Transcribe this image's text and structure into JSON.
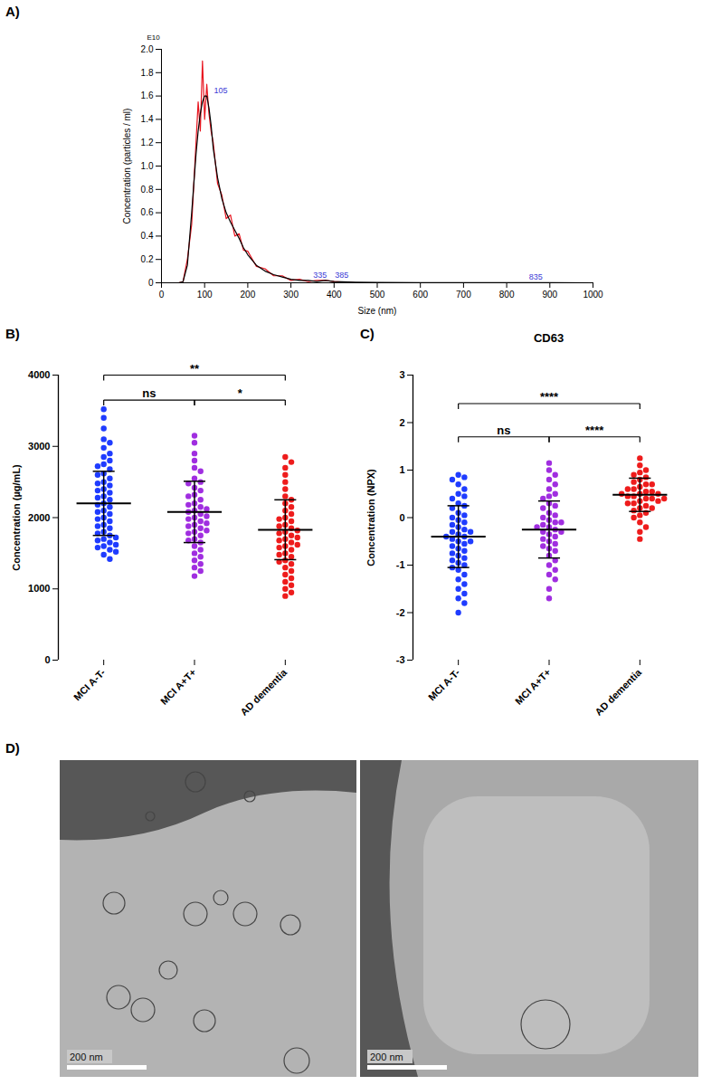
{
  "chart_data": [
    {
      "type": "line",
      "panel_label": "A)",
      "x_label": "Size (nm)",
      "y_label": "Concentration (particles / ml)",
      "x": [
        0,
        20,
        40,
        50,
        60,
        70,
        80,
        85,
        90,
        95,
        100,
        105,
        110,
        115,
        120,
        130,
        140,
        150,
        160,
        170,
        180,
        190,
        200,
        220,
        240,
        260,
        280,
        300,
        320,
        340,
        360,
        380,
        400,
        450,
        500,
        600,
        700,
        800,
        900,
        1000
      ],
      "series": [
        {
          "color": "#e8141e",
          "values": [
            0,
            0,
            0,
            0.01,
            0.2,
            0.5,
            1.2,
            1.55,
            1.3,
            1.9,
            1.4,
            1.7,
            1.45,
            1.3,
            1.2,
            0.85,
            0.75,
            0.55,
            0.58,
            0.4,
            0.42,
            0.28,
            0.27,
            0.14,
            0.12,
            0.06,
            0.06,
            0.02,
            0.03,
            0.01,
            0.02,
            0.02,
            0.01,
            0,
            0,
            0,
            0,
            0,
            0,
            0
          ]
        },
        {
          "color": "#000000",
          "values": [
            0,
            0,
            0,
            0.01,
            0.15,
            0.6,
            1.1,
            1.3,
            1.45,
            1.55,
            1.6,
            1.6,
            1.5,
            1.35,
            1.15,
            0.9,
            0.72,
            0.6,
            0.52,
            0.45,
            0.38,
            0.3,
            0.24,
            0.15,
            0.1,
            0.07,
            0.05,
            0.03,
            0.02,
            0.02,
            0.01,
            0.02,
            0.01,
            0.005,
            0.003,
            0.002,
            0.002,
            0.002,
            0.001,
            0
          ]
        }
      ],
      "xlim": [
        0,
        1000
      ],
      "xticks": [
        0,
        100,
        200,
        300,
        400,
        500,
        600,
        700,
        800,
        900,
        1000
      ],
      "ylim": [
        0,
        2
      ],
      "yticks": [
        0,
        0.2,
        0.4,
        0.6,
        0.8,
        {
          "value": 1,
          "label": "1.0"
        },
        1.2,
        1.4,
        1.6,
        1.8,
        {
          "value": 2,
          "label": "2.0"
        }
      ],
      "annotations": [
        {
          "text": "E10"
        },
        {
          "text": "105",
          "x": 105,
          "y": 1.6,
          "color": "#3b3bd6"
        },
        {
          "text": "335",
          "x": 335,
          "y": 0.02,
          "color": "#3b3bd6"
        },
        {
          "text": "385",
          "x": 385,
          "y": 0.02,
          "color": "#3b3bd6"
        },
        {
          "text": "835",
          "x": 835,
          "y": 0.005,
          "color": "#3b3bd6"
        }
      ]
    },
    {
      "type": "scatter",
      "panel_label": "B)",
      "y_label": "Concentration (µg/mL)",
      "categories": [
        "MCI A-T-",
        "MCI A+T+",
        "AD dementia"
      ],
      "colors": [
        "#1f3cff",
        "#a02ee0",
        "#ee1c1c"
      ],
      "values": [
        [
          3520,
          3400,
          3250,
          3100,
          3050,
          2980,
          2900,
          2850,
          2800,
          2750,
          2720,
          2680,
          2620,
          2600,
          2550,
          2500,
          2480,
          2450,
          2400,
          2380,
          2350,
          2300,
          2280,
          2250,
          2200,
          2180,
          2150,
          2100,
          2080,
          2050,
          2000,
          1980,
          1950,
          1900,
          1880,
          1850,
          1800,
          1780,
          1750,
          1720,
          1700,
          1680,
          1650,
          1620,
          1600,
          1580,
          1550,
          1520,
          1480,
          1420
        ],
        [
          3150,
          3050,
          2900,
          2800,
          2700,
          2650,
          2550,
          2500,
          2480,
          2420,
          2380,
          2320,
          2300,
          2250,
          2200,
          2180,
          2150,
          2120,
          2100,
          2080,
          2050,
          2020,
          2000,
          1980,
          1950,
          1920,
          1900,
          1880,
          1850,
          1820,
          1800,
          1780,
          1750,
          1700,
          1680,
          1650,
          1600,
          1550,
          1500,
          1450,
          1400,
          1350,
          1300,
          1250,
          1180
        ],
        [
          2850,
          2780,
          2700,
          2600,
          2500,
          2400,
          2300,
          2250,
          2200,
          2150,
          2100,
          2050,
          2000,
          1980,
          1950,
          1900,
          1880,
          1850,
          1820,
          1800,
          1780,
          1750,
          1720,
          1700,
          1680,
          1650,
          1620,
          1600,
          1580,
          1550,
          1500,
          1480,
          1450,
          1400,
          1380,
          1350,
          1300,
          1250,
          1200,
          1150,
          1100,
          1050,
          1000,
          950,
          900
        ]
      ],
      "mean": [
        2200,
        2080,
        1830
      ],
      "sd": [
        450,
        430,
        420
      ],
      "ylim": [
        0,
        4000
      ],
      "yticks": [
        0,
        1000,
        2000,
        3000,
        4000
      ],
      "annotations": [
        {
          "text": "**",
          "x1": 0,
          "x2": 2,
          "y": 4000
        },
        {
          "text": "ns",
          "x1": 0,
          "x2": 1,
          "y": 3650
        },
        {
          "text": "*",
          "x1": 1,
          "x2": 2,
          "y": 3650
        }
      ]
    },
    {
      "type": "scatter",
      "panel_label": "C)",
      "title": "CD63",
      "y_label": "Concentration (NPX)",
      "categories": [
        "MCI A-T-",
        "MCI A+T+",
        "AD dementia"
      ],
      "colors": [
        "#1f3cff",
        "#a02ee0",
        "#ee1c1c"
      ],
      "values": [
        [
          0.9,
          0.85,
          0.8,
          0.7,
          0.6,
          0.5,
          0.45,
          0.4,
          0.3,
          0.25,
          0.2,
          0.1,
          0.05,
          0,
          -0.05,
          -0.1,
          -0.15,
          -0.2,
          -0.25,
          -0.3,
          -0.3,
          -0.35,
          -0.4,
          -0.4,
          -0.45,
          -0.5,
          -0.5,
          -0.55,
          -0.6,
          -0.65,
          -0.7,
          -0.75,
          -0.8,
          -0.85,
          -0.9,
          -0.95,
          -1.0,
          -1.05,
          -1.1,
          -1.2,
          -1.3,
          -1.4,
          -1.5,
          -1.6,
          -1.7,
          -1.8,
          -2.0
        ],
        [
          1.15,
          1.0,
          0.9,
          0.8,
          0.7,
          0.6,
          0.5,
          0.45,
          0.4,
          0.3,
          0.25,
          0.2,
          0.1,
          0.05,
          0,
          -0.05,
          -0.1,
          -0.1,
          -0.15,
          -0.2,
          -0.2,
          -0.25,
          -0.3,
          -0.3,
          -0.35,
          -0.4,
          -0.45,
          -0.5,
          -0.55,
          -0.6,
          -0.65,
          -0.7,
          -0.8,
          -0.9,
          -1.0,
          -1.1,
          -1.2,
          -1.3,
          -1.5,
          -1.7
        ],
        [
          1.25,
          1.1,
          1.0,
          0.95,
          0.9,
          0.85,
          0.8,
          0.75,
          0.7,
          0.7,
          0.65,
          0.6,
          0.6,
          0.55,
          0.55,
          0.5,
          0.5,
          0.5,
          0.45,
          0.45,
          0.4,
          0.4,
          0.4,
          0.35,
          0.35,
          0.3,
          0.3,
          0.25,
          0.2,
          0.2,
          0.15,
          0.1,
          0.05,
          0,
          -0.1,
          -0.2,
          -0.3,
          -0.45
        ]
      ],
      "mean": [
        -0.4,
        -0.25,
        0.48
      ],
      "sd": [
        0.65,
        0.6,
        0.35
      ],
      "ylim": [
        -3,
        3
      ],
      "yticks": [
        -3,
        -2,
        -1,
        0,
        1,
        2,
        3
      ],
      "annotations": [
        {
          "text": "****",
          "x1": 0,
          "x2": 2,
          "y": 2.4
        },
        {
          "text": "ns",
          "x1": 0,
          "x2": 1,
          "y": 1.7
        },
        {
          "text": "****",
          "x1": 1,
          "x2": 2,
          "y": 1.7
        }
      ]
    }
  ],
  "panel_d": {
    "panel_label": "D)",
    "images": [
      {
        "scale_bar": "200 nm"
      },
      {
        "scale_bar": "200 nm"
      }
    ]
  }
}
